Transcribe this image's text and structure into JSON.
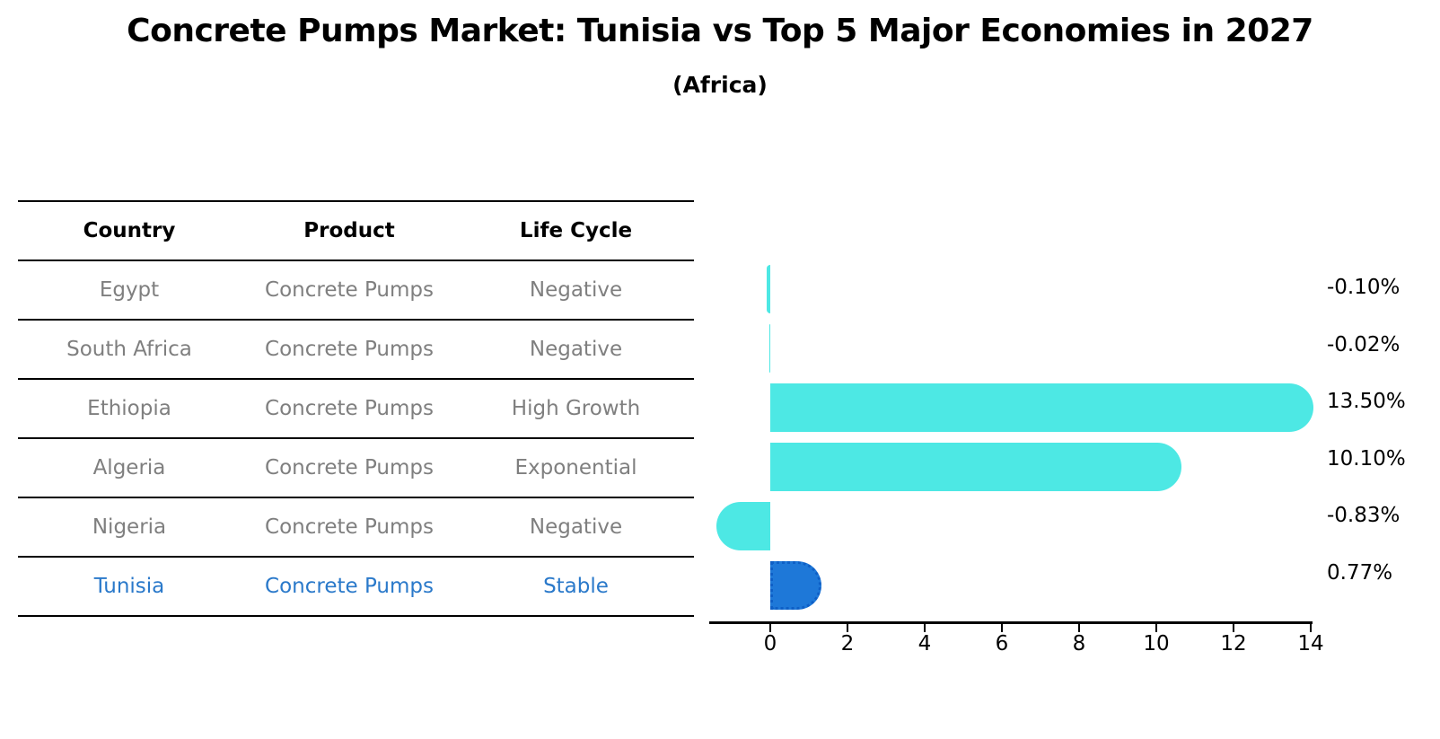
{
  "title": "Concrete Pumps Market: Tunisia vs Top 5 Major Economies in 2027",
  "subtitle": "(Africa)",
  "table": {
    "headers": [
      "Country",
      "Product",
      "Life Cycle"
    ],
    "rows": [
      {
        "country": "Egypt",
        "product": "Concrete Pumps",
        "life_cycle": "Negative",
        "highlight": false
      },
      {
        "country": "South Africa",
        "product": "Concrete Pumps",
        "life_cycle": "Negative",
        "highlight": false
      },
      {
        "country": "Ethiopia",
        "product": "Concrete Pumps",
        "life_cycle": "High Growth",
        "highlight": false
      },
      {
        "country": "Algeria",
        "product": "Concrete Pumps",
        "life_cycle": "Exponential",
        "highlight": false
      },
      {
        "country": "Nigeria",
        "product": "Concrete Pumps",
        "life_cycle": "Negative",
        "highlight": false
      },
      {
        "country": "Tunisia",
        "product": "Concrete Pumps",
        "life_cycle": "Stable",
        "highlight": true
      }
    ]
  },
  "chart_data": {
    "type": "bar",
    "orientation": "horizontal",
    "categories": [
      "Egypt",
      "South Africa",
      "Ethiopia",
      "Algeria",
      "Nigeria",
      "Tunisia"
    ],
    "values": [
      -0.1,
      -0.02,
      13.5,
      10.1,
      -0.83,
      0.77
    ],
    "value_labels": [
      "-0.10%",
      "-0.02%",
      "13.50%",
      "10.10%",
      "-0.83%",
      "0.77%"
    ],
    "xticks": [
      0,
      2,
      4,
      6,
      8,
      10,
      12,
      14
    ],
    "xlim": [
      -1.6,
      14.1
    ],
    "grid": false,
    "legend": false,
    "bar_color": "#4de8e4",
    "highlight_bar_color": "#1e78d8",
    "highlight_index": 5,
    "title": "Concrete Pumps Market: Tunisia vs Top 5 Major Economies in 2027",
    "subtitle": "(Africa)",
    "xlabel": "",
    "ylabel": ""
  },
  "colors": {
    "bar_cyan": "#4de8e4",
    "bar_blue": "#1e78d8",
    "highlight_text_blue": "#2a79ca",
    "table_text_gray": "#7f7f7f",
    "text_black": "#000000"
  }
}
